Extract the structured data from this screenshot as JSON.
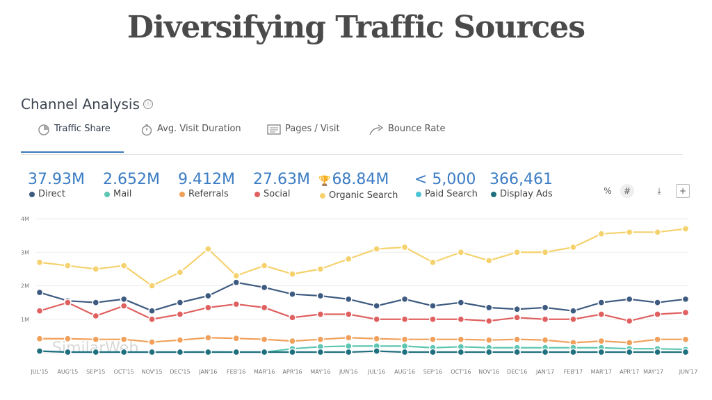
{
  "slide_title": "Diversifying Traffic Sources",
  "panel": {
    "title": "Channel Analysis",
    "info_icon": "ⓘ"
  },
  "tabs": [
    {
      "label": "Traffic Share",
      "icon": "pie-chart-icon",
      "active": true
    },
    {
      "label": "Avg. Visit Duration",
      "icon": "stopwatch-icon",
      "active": false
    },
    {
      "label": "Pages / Visit",
      "icon": "pages-icon",
      "active": false
    },
    {
      "label": "Bounce Rate",
      "icon": "bounce-arrow-icon",
      "active": false
    }
  ],
  "metrics": [
    {
      "value": "37.93M",
      "label": "Direct",
      "color": "#3d5a80"
    },
    {
      "value": "2.652M",
      "label": "Mail",
      "color": "#5cc6b0"
    },
    {
      "value": "9.412M",
      "label": "Referrals",
      "color": "#f0a05a"
    },
    {
      "value": "27.63M",
      "label": "Social",
      "color": "#e06060"
    },
    {
      "value": "68.84M",
      "label": "Organic Search",
      "color": "#f5d26e",
      "trophy": true
    },
    {
      "value": "< 5,000",
      "label": "Paid Search",
      "color": "#4ac4d4"
    },
    {
      "value": "366,461",
      "label": "Display Ads",
      "color": "#1f6f7f"
    }
  ],
  "toolbar": {
    "percent": "%",
    "hash": "#",
    "download": "⤓",
    "add": "+"
  },
  "watermark": "SimilarWeb",
  "chart_data": {
    "type": "line",
    "x": [
      "JUL'15",
      "AUG'15",
      "SEP'15",
      "OCT'15",
      "NOV'15",
      "DEC'15",
      "JAN'16",
      "FEB'16",
      "MAR'16",
      "APR'16",
      "MAY'16",
      "JUN'16",
      "JUL'16",
      "AUG'16",
      "SEP'16",
      "OCT'16",
      "NOV'16",
      "DEC'16",
      "JAN'17",
      "FEB'17",
      "MAR'17",
      "APR'17",
      "MAY'17",
      "JUN'17"
    ],
    "y_ticks": [
      "4M",
      "3M",
      "2M",
      "1M"
    ],
    "ylim": [
      0,
      4
    ],
    "series": [
      {
        "name": "Organic Search",
        "color": "#f5d26e",
        "values": [
          2.7,
          2.6,
          2.5,
          2.6,
          2.0,
          2.4,
          3.1,
          2.3,
          2.6,
          2.35,
          2.5,
          2.8,
          3.1,
          3.15,
          2.7,
          3.0,
          2.75,
          3.0,
          3.0,
          3.15,
          3.55,
          3.6,
          3.6,
          3.7
        ]
      },
      {
        "name": "Direct",
        "color": "#3d5a80",
        "values": [
          1.8,
          1.55,
          1.5,
          1.6,
          1.25,
          1.5,
          1.7,
          2.1,
          1.95,
          1.75,
          1.7,
          1.6,
          1.4,
          1.6,
          1.4,
          1.5,
          1.35,
          1.3,
          1.35,
          1.25,
          1.5,
          1.6,
          1.5,
          1.6
        ]
      },
      {
        "name": "Social",
        "color": "#e06060",
        "values": [
          1.25,
          1.5,
          1.1,
          1.4,
          1.0,
          1.15,
          1.35,
          1.45,
          1.35,
          1.05,
          1.15,
          1.15,
          1.0,
          1.0,
          1.0,
          1.0,
          0.95,
          1.05,
          1.0,
          1.0,
          1.15,
          0.95,
          1.15,
          1.2
        ]
      },
      {
        "name": "Referrals",
        "color": "#f0a05a",
        "values": [
          0.42,
          0.42,
          0.4,
          0.4,
          0.32,
          0.38,
          0.45,
          0.43,
          0.4,
          0.35,
          0.4,
          0.45,
          0.42,
          0.4,
          0.4,
          0.4,
          0.38,
          0.4,
          0.38,
          0.3,
          0.35,
          0.3,
          0.4,
          0.4
        ]
      },
      {
        "name": "Mail",
        "color": "#5cc6b0",
        "values": [
          0.05,
          0.02,
          0.02,
          0.02,
          0.02,
          0.02,
          0.03,
          0.02,
          0.02,
          0.12,
          0.18,
          0.2,
          0.2,
          0.2,
          0.15,
          0.18,
          0.15,
          0.15,
          0.15,
          0.15,
          0.15,
          0.12,
          0.12,
          0.1
        ]
      },
      {
        "name": "Display Ads",
        "color": "#1f6f7f",
        "values": [
          0.05,
          0.02,
          0.02,
          0.02,
          0.02,
          0.02,
          0.02,
          0.02,
          0.02,
          0.02,
          0.02,
          0.02,
          0.05,
          0.02,
          0.02,
          0.02,
          0.02,
          0.02,
          0.02,
          0.02,
          0.02,
          0.02,
          0.02,
          0.02
        ]
      }
    ]
  }
}
